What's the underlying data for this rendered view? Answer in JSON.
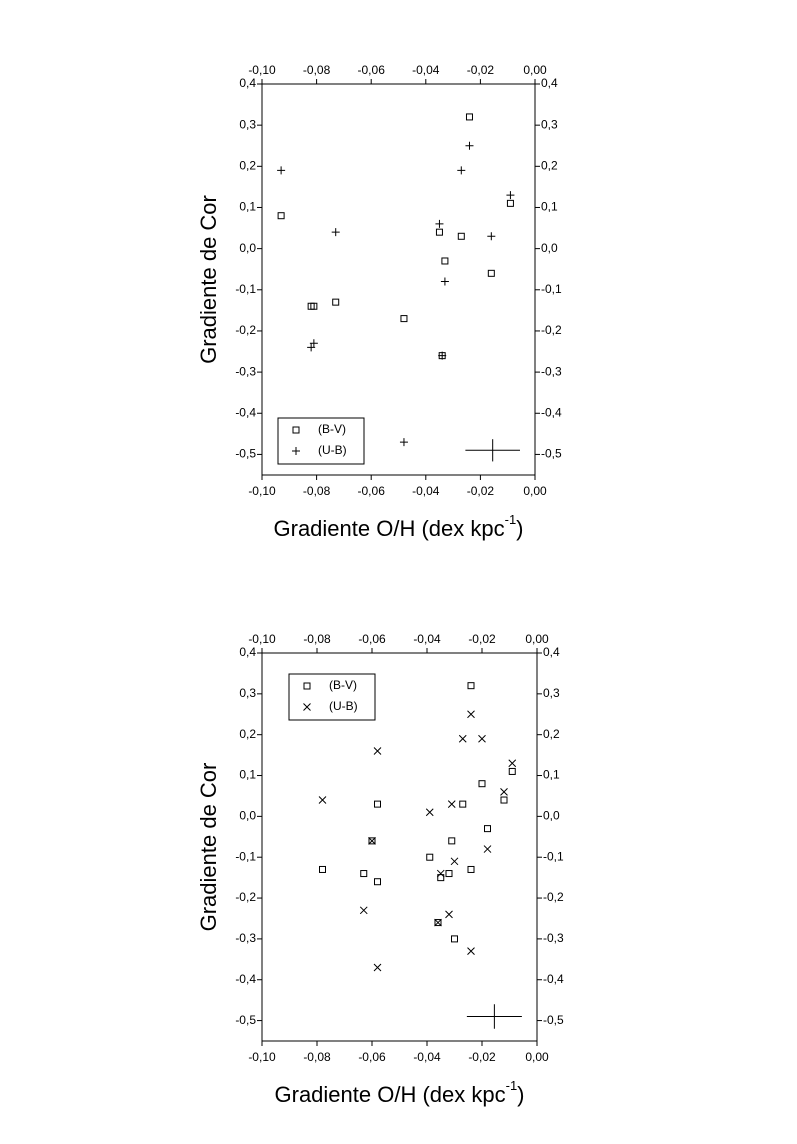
{
  "chart_data": [
    {
      "type": "scatter",
      "ylabel": "Gradiente de Cor",
      "xlabel": [
        "Gradiente O/H (dex kpc",
        "-1",
        ")"
      ],
      "xlim": [
        -0.1,
        0
      ],
      "ylim": [
        -0.55,
        0.4
      ],
      "xticks": [
        {
          "value": -0.1,
          "label": "-0,10"
        },
        {
          "value": -0.08,
          "label": "-0,08"
        },
        {
          "value": -0.06,
          "label": "-0,06"
        },
        {
          "value": -0.04,
          "label": "-0,04"
        },
        {
          "value": -0.02,
          "label": "-0,02"
        },
        {
          "value": 0,
          "label": "0,00"
        }
      ],
      "yticks": [
        {
          "value": 0.4,
          "label": "0,4"
        },
        {
          "value": 0.3,
          "label": "0,3"
        },
        {
          "value": 0.2,
          "label": "0,2"
        },
        {
          "value": 0.1,
          "label": "0,1"
        },
        {
          "value": 0,
          "label": "0,0"
        },
        {
          "value": -0.1,
          "label": "-0,1"
        },
        {
          "value": -0.2,
          "label": "-0,2"
        },
        {
          "value": -0.3,
          "label": "-0,3"
        },
        {
          "value": -0.4,
          "label": "-0,4"
        },
        {
          "value": -0.5,
          "label": "-0,5"
        }
      ],
      "legend": "lower left",
      "series": [
        {
          "name": "(B-V)",
          "color": "#000000",
          "marker": "square",
          "x": [
            -0.093,
            -0.082,
            -0.081,
            -0.073,
            -0.048,
            -0.033,
            -0.035,
            -0.034,
            -0.027,
            -0.024,
            -0.016,
            -0.009
          ],
          "values": [
            0.08,
            -0.14,
            -0.14,
            -0.13,
            -0.17,
            -0.03,
            0.04,
            -0.26,
            0.03,
            0.32,
            -0.06,
            0.11
          ]
        },
        {
          "name": "(U-B)",
          "color": "#000000",
          "marker": "plus",
          "x": [
            -0.093,
            -0.073,
            -0.082,
            -0.081,
            -0.048,
            -0.033,
            -0.035,
            -0.034,
            -0.027,
            -0.024,
            -0.016,
            -0.009
          ],
          "values": [
            0.19,
            0.04,
            -0.24,
            -0.23,
            -0.47,
            -0.08,
            0.06,
            -0.26,
            0.19,
            0.25,
            0.03,
            0.13
          ]
        }
      ],
      "error_bar": {
        "x": -0.0155,
        "y": -0.49,
        "xerr": 0.01,
        "yerr": 0.027
      }
    },
    {
      "type": "scatter",
      "ylabel": "Gradiente de Cor",
      "xlabel": [
        "Gradiente O/H (dex kpc",
        "-1",
        ")"
      ],
      "xlim": [
        -0.1,
        0
      ],
      "ylim": [
        -0.55,
        0.4
      ],
      "xticks": [
        {
          "value": -0.1,
          "label": "-0,10"
        },
        {
          "value": -0.08,
          "label": "-0,08"
        },
        {
          "value": -0.06,
          "label": "-0,06"
        },
        {
          "value": -0.04,
          "label": "-0,04"
        },
        {
          "value": -0.02,
          "label": "-0,02"
        },
        {
          "value": 0,
          "label": "0,00"
        }
      ],
      "yticks": [
        {
          "value": 0.4,
          "label": "0,4"
        },
        {
          "value": 0.3,
          "label": "0,3"
        },
        {
          "value": 0.2,
          "label": "0,2"
        },
        {
          "value": 0.1,
          "label": "0,1"
        },
        {
          "value": 0,
          "label": "0,0"
        },
        {
          "value": -0.1,
          "label": "-0,1"
        },
        {
          "value": -0.2,
          "label": "-0,2"
        },
        {
          "value": -0.3,
          "label": "-0,3"
        },
        {
          "value": -0.4,
          "label": "-0,4"
        },
        {
          "value": -0.5,
          "label": "-0,5"
        }
      ],
      "legend": "upper left",
      "series": [
        {
          "name": "(B-V)",
          "color": "#000000",
          "marker": "square",
          "x": [
            -0.078,
            -0.063,
            -0.058,
            -0.058,
            -0.06,
            -0.039,
            -0.035,
            -0.036,
            -0.032,
            -0.031,
            -0.03,
            -0.027,
            -0.024,
            -0.024,
            -0.02,
            -0.018,
            -0.012,
            -0.009
          ],
          "values": [
            -0.13,
            -0.14,
            -0.16,
            0.03,
            -0.06,
            -0.1,
            -0.15,
            -0.26,
            -0.14,
            -0.06,
            -0.3,
            0.03,
            0.32,
            -0.13,
            0.08,
            -0.03,
            0.04,
            0.11
          ]
        },
        {
          "name": "(U-B)",
          "color": "#000000",
          "marker": "cross",
          "x": [
            -0.078,
            -0.063,
            -0.058,
            -0.058,
            -0.06,
            -0.039,
            -0.035,
            -0.036,
            -0.032,
            -0.031,
            -0.03,
            -0.027,
            -0.024,
            -0.024,
            -0.02,
            -0.018,
            -0.012,
            -0.009
          ],
          "values": [
            0.04,
            -0.23,
            0.16,
            -0.37,
            -0.06,
            0.01,
            -0.14,
            -0.26,
            -0.24,
            0.03,
            -0.11,
            0.19,
            0.25,
            -0.33,
            0.19,
            -0.08,
            0.06,
            0.13
          ]
        }
      ],
      "error_bar": {
        "x": -0.0155,
        "y": -0.49,
        "xerr": 0.01,
        "yerr": 0.03
      }
    }
  ]
}
